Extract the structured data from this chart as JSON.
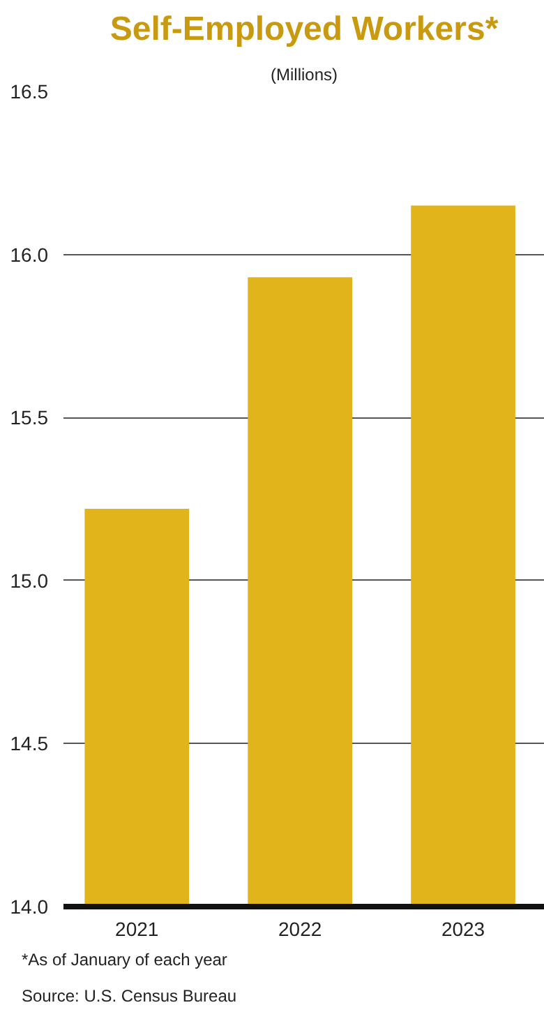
{
  "chart_data": {
    "type": "bar",
    "title": "Self-Employed Workers*",
    "subtitle": "(Millions)",
    "categories": [
      "2021",
      "2022",
      "2023"
    ],
    "values": [
      15.22,
      15.93,
      16.15
    ],
    "color": "#e2b41c",
    "ylim": [
      14.0,
      16.5
    ],
    "yticks": [
      {
        "value": 14.0,
        "label": "14.0"
      },
      {
        "value": 14.5,
        "label": "14.5"
      },
      {
        "value": 15.0,
        "label": "15.0"
      },
      {
        "value": 15.5,
        "label": "15.5"
      },
      {
        "value": 16.0,
        "label": "16.0"
      },
      {
        "value": 16.5,
        "label": "16.5"
      }
    ],
    "grid": "y",
    "annotations": [
      "*As of January of each year",
      "Source: U.S. Census Bureau"
    ]
  }
}
